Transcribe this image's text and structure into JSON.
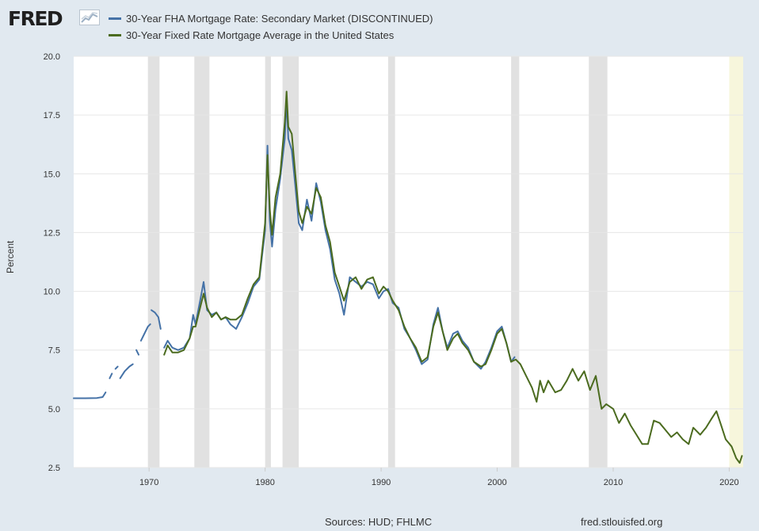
{
  "header": {
    "logo_text": "FRED",
    "logo_icon": "trend-line-icon"
  },
  "colors": {
    "fha": "#4572a7",
    "fixed": "#4b6b1f",
    "recession": "#e1e1e1",
    "partial_period": "#f7f6dc",
    "plot_background": "#ffffff",
    "page_background": "#e1e9f0"
  },
  "chart_data": {
    "type": "line",
    "title": "",
    "xlabel": "",
    "ylabel": "Percent",
    "xlim": [
      1963.5,
      2021.2
    ],
    "ylim": [
      2.5,
      20.0
    ],
    "grid": true,
    "legend_position": "top-left",
    "x_ticks": [
      "1970",
      "1980",
      "1990",
      "2000",
      "2010",
      "2020"
    ],
    "y_ticks": [
      "20.0",
      "17.5",
      "15.0",
      "12.5",
      "10.0",
      "7.5",
      "5.0",
      "2.5"
    ],
    "recessions": [
      [
        1969.9,
        1970.9
      ],
      [
        1973.9,
        1975.2
      ],
      [
        1980.0,
        1980.5
      ],
      [
        1981.5,
        1982.9
      ],
      [
        1990.6,
        1991.2
      ],
      [
        2001.2,
        2001.9
      ],
      [
        2007.9,
        2009.5
      ]
    ],
    "partial_period": [
      2020.0,
      2021.2
    ],
    "series": [
      {
        "name": "30-Year FHA Mortgage Rate: Secondary Market (DISCONTINUED)",
        "segments": [
          [
            [
              1963.5,
              5.45
            ],
            [
              1964.5,
              5.45
            ],
            [
              1965.5,
              5.46
            ],
            [
              1966.0,
              5.5
            ],
            [
              1966.25,
              5.7
            ]
          ],
          [
            [
              1966.6,
              6.3
            ],
            [
              1966.8,
              6.5
            ]
          ],
          [
            [
              1967.1,
              6.7
            ],
            [
              1967.3,
              6.8
            ]
          ],
          [
            [
              1967.5,
              6.3
            ],
            [
              1967.9,
              6.6
            ],
            [
              1968.3,
              6.8
            ],
            [
              1968.6,
              6.9
            ]
          ],
          [
            [
              1968.9,
              7.5
            ],
            [
              1969.1,
              7.3
            ]
          ],
          [
            [
              1969.3,
              7.9
            ],
            [
              1969.6,
              8.2
            ],
            [
              1969.9,
              8.5
            ],
            [
              1970.1,
              8.6
            ]
          ],
          [
            [
              1970.2,
              9.2
            ],
            [
              1970.5,
              9.1
            ],
            [
              1970.8,
              8.9
            ],
            [
              1971.0,
              8.4
            ]
          ],
          [
            [
              1971.3,
              7.6
            ],
            [
              1971.6,
              7.9
            ],
            [
              1972.0,
              7.6
            ],
            [
              1972.5,
              7.5
            ],
            [
              1973.0,
              7.6
            ],
            [
              1973.5,
              8.0
            ],
            [
              1973.8,
              9.0
            ],
            [
              1974.0,
              8.6
            ],
            [
              1974.4,
              9.6
            ],
            [
              1974.7,
              10.4
            ],
            [
              1975.0,
              9.2
            ],
            [
              1975.4,
              9.0
            ],
            [
              1975.8,
              9.1
            ],
            [
              1976.2,
              8.8
            ],
            [
              1976.6,
              8.9
            ],
            [
              1977.0,
              8.6
            ],
            [
              1977.5,
              8.4
            ],
            [
              1978.0,
              8.9
            ],
            [
              1978.5,
              9.5
            ],
            [
              1979.0,
              10.2
            ],
            [
              1979.5,
              10.5
            ],
            [
              1980.0,
              12.6
            ],
            [
              1980.2,
              16.2
            ],
            [
              1980.4,
              13.0
            ],
            [
              1980.6,
              11.9
            ],
            [
              1980.9,
              13.5
            ],
            [
              1981.3,
              14.8
            ],
            [
              1981.7,
              16.5
            ],
            [
              1981.85,
              18.2
            ],
            [
              1982.0,
              16.5
            ],
            [
              1982.3,
              16.0
            ],
            [
              1982.6,
              14.5
            ],
            [
              1982.9,
              12.9
            ],
            [
              1983.2,
              12.6
            ],
            [
              1983.6,
              13.9
            ],
            [
              1984.0,
              13.0
            ],
            [
              1984.4,
              14.6
            ],
            [
              1984.8,
              13.8
            ],
            [
              1985.2,
              12.6
            ],
            [
              1985.6,
              11.8
            ],
            [
              1986.0,
              10.5
            ],
            [
              1986.4,
              9.9
            ],
            [
              1986.8,
              9.0
            ],
            [
              1987.3,
              10.6
            ],
            [
              1987.8,
              10.4
            ],
            [
              1988.3,
              10.2
            ],
            [
              1988.8,
              10.4
            ],
            [
              1989.3,
              10.3
            ],
            [
              1989.8,
              9.7
            ],
            [
              1990.2,
              10.0
            ],
            [
              1990.6,
              10.1
            ],
            [
              1991.0,
              9.5
            ],
            [
              1991.5,
              9.3
            ],
            [
              1992.0,
              8.4
            ],
            [
              1992.5,
              8.0
            ],
            [
              1993.0,
              7.5
            ],
            [
              1993.5,
              6.9
            ],
            [
              1994.0,
              7.1
            ],
            [
              1994.5,
              8.6
            ],
            [
              1994.9,
              9.3
            ],
            [
              1995.3,
              8.3
            ],
            [
              1995.7,
              7.6
            ],
            [
              1996.2,
              8.2
            ],
            [
              1996.6,
              8.3
            ],
            [
              1997.0,
              7.9
            ],
            [
              1997.5,
              7.6
            ],
            [
              1998.0,
              7.0
            ],
            [
              1998.6,
              6.7
            ],
            [
              1999.0,
              7.0
            ],
            [
              1999.5,
              7.6
            ],
            [
              2000.0,
              8.3
            ],
            [
              2000.4,
              8.5
            ],
            [
              2000.8,
              7.8
            ],
            [
              2001.2,
              7.0
            ],
            [
              2001.5,
              7.2
            ]
          ]
        ]
      },
      {
        "name": "30-Year Fixed Rate Mortgage Average in the United States",
        "segments": [
          [
            [
              1971.3,
              7.3
            ],
            [
              1971.6,
              7.7
            ],
            [
              1972.0,
              7.4
            ],
            [
              1972.5,
              7.4
            ],
            [
              1973.0,
              7.5
            ],
            [
              1973.5,
              8.0
            ],
            [
              1973.8,
              8.5
            ],
            [
              1974.0,
              8.5
            ],
            [
              1974.4,
              9.3
            ],
            [
              1974.7,
              9.9
            ],
            [
              1975.0,
              9.3
            ],
            [
              1975.4,
              8.9
            ],
            [
              1975.8,
              9.1
            ],
            [
              1976.2,
              8.8
            ],
            [
              1976.6,
              8.9
            ],
            [
              1977.0,
              8.8
            ],
            [
              1977.5,
              8.8
            ],
            [
              1978.0,
              9.0
            ],
            [
              1978.5,
              9.7
            ],
            [
              1979.0,
              10.3
            ],
            [
              1979.5,
              10.6
            ],
            [
              1980.0,
              12.9
            ],
            [
              1980.2,
              15.8
            ],
            [
              1980.4,
              13.5
            ],
            [
              1980.6,
              12.4
            ],
            [
              1980.9,
              14.0
            ],
            [
              1981.3,
              15.0
            ],
            [
              1981.7,
              17.2
            ],
            [
              1981.85,
              18.5
            ],
            [
              1982.0,
              17.0
            ],
            [
              1982.3,
              16.7
            ],
            [
              1982.6,
              15.0
            ],
            [
              1982.9,
              13.4
            ],
            [
              1983.2,
              12.9
            ],
            [
              1983.6,
              13.6
            ],
            [
              1984.0,
              13.3
            ],
            [
              1984.4,
              14.4
            ],
            [
              1984.8,
              14.0
            ],
            [
              1985.2,
              12.8
            ],
            [
              1985.6,
              12.1
            ],
            [
              1986.0,
              10.8
            ],
            [
              1986.4,
              10.2
            ],
            [
              1986.8,
              9.6
            ],
            [
              1987.3,
              10.4
            ],
            [
              1987.8,
              10.6
            ],
            [
              1988.3,
              10.1
            ],
            [
              1988.8,
              10.5
            ],
            [
              1989.3,
              10.6
            ],
            [
              1989.8,
              9.9
            ],
            [
              1990.2,
              10.2
            ],
            [
              1990.6,
              10.0
            ],
            [
              1991.0,
              9.6
            ],
            [
              1991.5,
              9.2
            ],
            [
              1992.0,
              8.5
            ],
            [
              1992.5,
              8.0
            ],
            [
              1993.0,
              7.6
            ],
            [
              1993.5,
              7.0
            ],
            [
              1994.0,
              7.2
            ],
            [
              1994.5,
              8.5
            ],
            [
              1994.9,
              9.1
            ],
            [
              1995.3,
              8.3
            ],
            [
              1995.7,
              7.5
            ],
            [
              1996.2,
              8.0
            ],
            [
              1996.6,
              8.2
            ],
            [
              1997.0,
              7.8
            ],
            [
              1997.5,
              7.5
            ],
            [
              1998.0,
              7.0
            ],
            [
              1998.6,
              6.8
            ],
            [
              1999.0,
              6.9
            ],
            [
              1999.5,
              7.5
            ],
            [
              2000.0,
              8.2
            ],
            [
              2000.4,
              8.4
            ],
            [
              2000.8,
              7.8
            ],
            [
              2001.2,
              7.0
            ],
            [
              2001.6,
              7.1
            ],
            [
              2002.0,
              6.9
            ],
            [
              2002.5,
              6.4
            ],
            [
              2003.0,
              5.9
            ],
            [
              2003.4,
              5.3
            ],
            [
              2003.7,
              6.2
            ],
            [
              2004.0,
              5.7
            ],
            [
              2004.4,
              6.2
            ],
            [
              2005.0,
              5.7
            ],
            [
              2005.5,
              5.8
            ],
            [
              2006.0,
              6.2
            ],
            [
              2006.5,
              6.7
            ],
            [
              2007.0,
              6.2
            ],
            [
              2007.5,
              6.6
            ],
            [
              2008.0,
              5.8
            ],
            [
              2008.5,
              6.4
            ],
            [
              2009.0,
              5.0
            ],
            [
              2009.4,
              5.2
            ],
            [
              2010.0,
              5.0
            ],
            [
              2010.5,
              4.4
            ],
            [
              2011.0,
              4.8
            ],
            [
              2011.5,
              4.3
            ],
            [
              2012.0,
              3.9
            ],
            [
              2012.5,
              3.5
            ],
            [
              2013.0,
              3.5
            ],
            [
              2013.5,
              4.5
            ],
            [
              2014.0,
              4.4
            ],
            [
              2014.5,
              4.1
            ],
            [
              2015.0,
              3.8
            ],
            [
              2015.5,
              4.0
            ],
            [
              2016.0,
              3.7
            ],
            [
              2016.5,
              3.5
            ],
            [
              2016.9,
              4.2
            ],
            [
              2017.5,
              3.9
            ],
            [
              2018.0,
              4.2
            ],
            [
              2018.5,
              4.6
            ],
            [
              2018.9,
              4.9
            ],
            [
              2019.3,
              4.3
            ],
            [
              2019.7,
              3.7
            ],
            [
              2020.2,
              3.4
            ],
            [
              2020.6,
              2.9
            ],
            [
              2020.9,
              2.7
            ],
            [
              2021.1,
              3.0
            ]
          ]
        ]
      }
    ]
  },
  "footer": {
    "sources": "Sources: HUD; FHLMC",
    "site": "fred.stlouisfed.org"
  }
}
